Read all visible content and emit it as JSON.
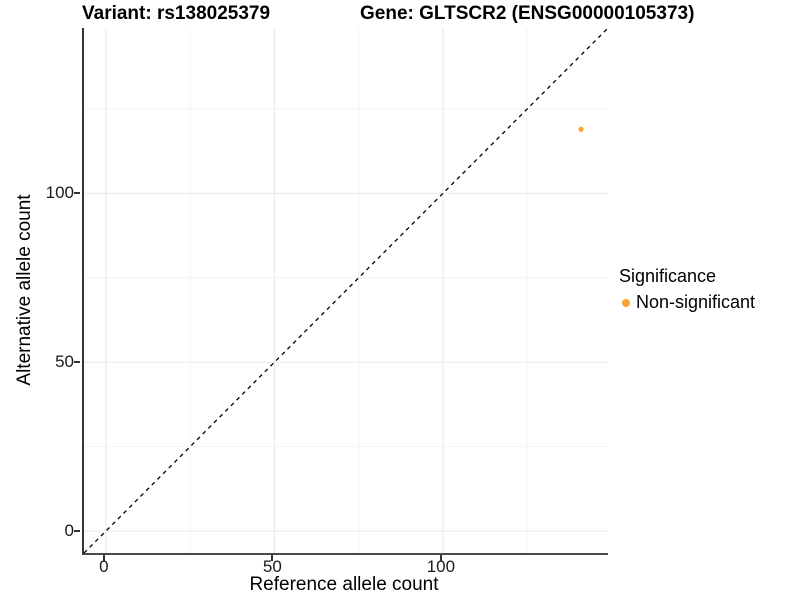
{
  "colors": {
    "point": "#F9A432",
    "grid_major": "#E8E8E8",
    "grid_minor": "#F3F3F3",
    "axis_line": "#333333",
    "identity_line": "#000000",
    "background": "#FFFFFF"
  },
  "chart_data": {
    "type": "scatter",
    "title_left": "Variant: rs138025379",
    "title_right": "Gene: GLTSCR2 (ENSG00000105373)",
    "xlabel": "Reference allele count",
    "ylabel": "Alternative allele count",
    "xlim": [
      -6.5,
      149
    ],
    "ylim": [
      -6.5,
      149
    ],
    "x_ticks": [
      0,
      50,
      100
    ],
    "y_ticks": [
      0,
      50,
      100
    ],
    "x_minor_ticks": [
      25,
      75,
      125
    ],
    "y_minor_ticks": [
      25,
      75,
      125
    ],
    "grid": "major+minor",
    "identity_line": {
      "shown": true,
      "style": "dashed",
      "equation": "y = x",
      "color": "#000000"
    },
    "legend": {
      "title": "Significance",
      "position": "right-center",
      "items": [
        {
          "label": "Non-significant",
          "color": "#F9A432"
        }
      ]
    },
    "series": [
      {
        "name": "Non-significant",
        "color": "#F9A432",
        "points": [
          {
            "x": 141,
            "y": 119
          }
        ]
      }
    ]
  }
}
